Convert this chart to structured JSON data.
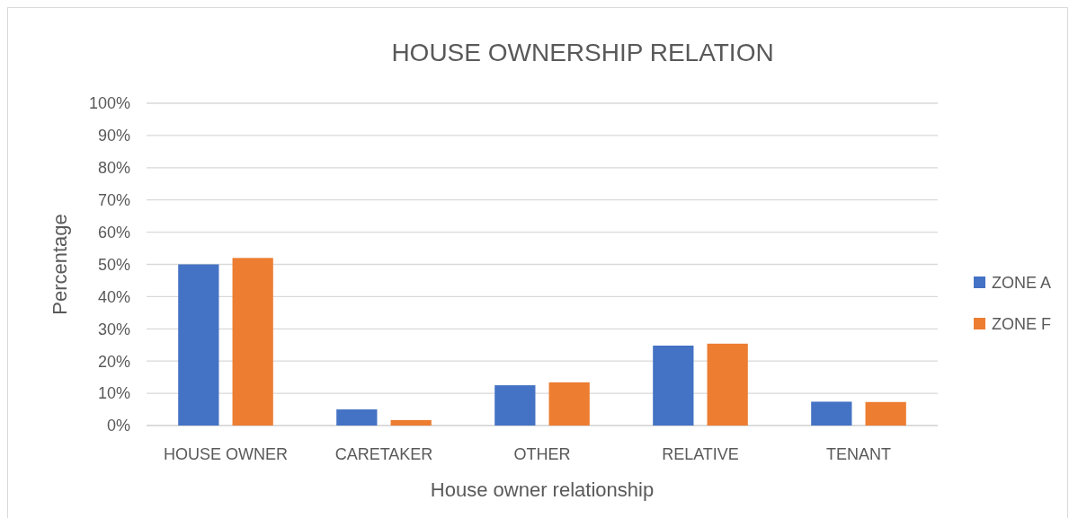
{
  "chart_data": {
    "type": "bar",
    "title": "HOUSE OWNERSHIP RELATION",
    "xlabel": "House owner relationship",
    "ylabel": "Percentage",
    "categories": [
      "HOUSE OWNER",
      "CARETAKER",
      "OTHER",
      "RELATIVE",
      "TENANT"
    ],
    "series": [
      {
        "name": "ZONE A",
        "color": "#4472c4",
        "values": [
          50,
          5,
          12.5,
          24.8,
          7.4
        ]
      },
      {
        "name": "ZONE F",
        "color": "#ed7d31",
        "values": [
          52,
          1.7,
          13.4,
          25.4,
          7.3
        ]
      }
    ],
    "ylim": [
      0,
      100
    ],
    "yticks": [
      {
        "value": 0,
        "label": "0%"
      },
      {
        "value": 10,
        "label": "10%"
      },
      {
        "value": 20,
        "label": "20%"
      },
      {
        "value": 30,
        "label": "30%"
      },
      {
        "value": 40,
        "label": "40%"
      },
      {
        "value": 50,
        "label": "50%"
      },
      {
        "value": 60,
        "label": "60%"
      },
      {
        "value": 70,
        "label": "70%"
      },
      {
        "value": 80,
        "label": "80%"
      },
      {
        "value": 90,
        "label": "90%"
      },
      {
        "value": 100,
        "label": "100%"
      }
    ],
    "grid": "y",
    "legend": "right"
  }
}
